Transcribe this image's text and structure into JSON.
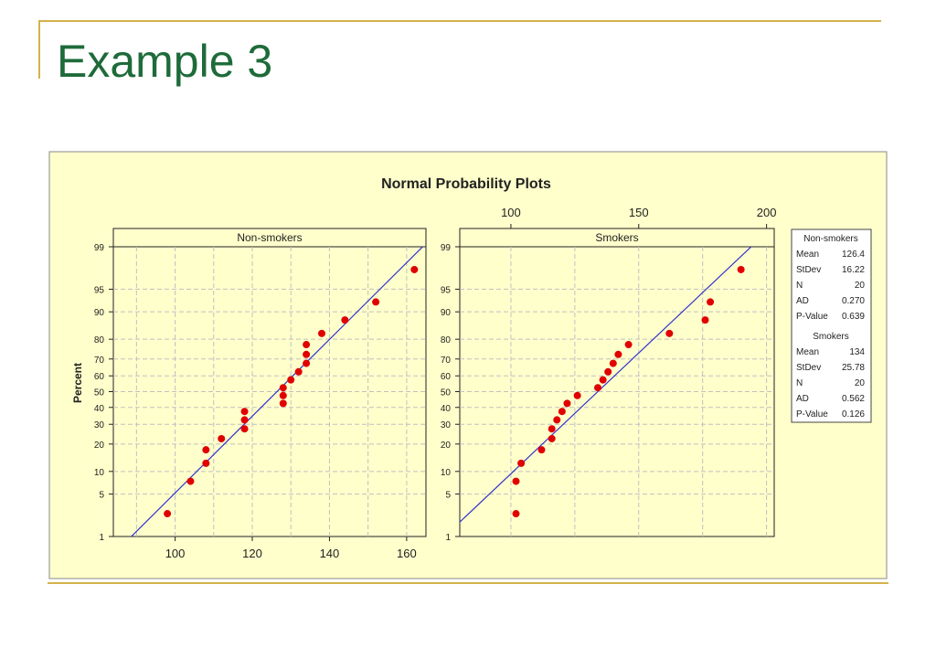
{
  "slide": {
    "title": "Example 3"
  },
  "colors": {
    "background": "#ffffcc",
    "point": "#e00000",
    "fit_line": "#3333cc",
    "grid": "#c0c0c0",
    "title": "#1e6b3a",
    "rule": "#d4b24a"
  },
  "chart_data": {
    "type": "scatter",
    "title": "Normal Probability Plots",
    "ylabel": "Percent",
    "y_scale": "normal-probability",
    "y_ticks": [
      1,
      5,
      10,
      20,
      30,
      40,
      50,
      60,
      70,
      80,
      90,
      95,
      99
    ],
    "grid": true,
    "legend_position": "right",
    "panels": [
      {
        "name": "Non-smokers",
        "x_axis_position": "bottom",
        "xlim": [
          84,
          165
        ],
        "x_ticks": [
          100,
          120,
          140,
          160
        ],
        "x": [
          98,
          104,
          108,
          108,
          112,
          118,
          118,
          118,
          128,
          128,
          128,
          130,
          132,
          134,
          134,
          134,
          138,
          144,
          152,
          162
        ],
        "y": [
          2.5,
          7.5,
          12.5,
          17.5,
          22.5,
          27.5,
          32.5,
          37.5,
          42.5,
          47.5,
          52.5,
          57.5,
          62.5,
          67.5,
          72.5,
          77.5,
          82.5,
          87.5,
          92.5,
          97.5
        ],
        "mean": 126.4,
        "stdev": 16.22
      },
      {
        "name": "Smokers",
        "x_axis_position": "top",
        "xlim": [
          80,
          203
        ],
        "x_ticks": [
          100,
          150,
          200
        ],
        "x": [
          102,
          102,
          104,
          112,
          116,
          116,
          118,
          120,
          122,
          126,
          134,
          136,
          138,
          140,
          142,
          146,
          162,
          176,
          178,
          190
        ],
        "y": [
          2.5,
          7.5,
          12.5,
          17.5,
          22.5,
          27.5,
          32.5,
          37.5,
          42.5,
          47.5,
          52.5,
          57.5,
          62.5,
          67.5,
          72.5,
          77.5,
          82.5,
          87.5,
          92.5,
          97.5
        ],
        "mean": 134,
        "stdev": 25.78
      }
    ],
    "stats": [
      {
        "name": "Non-smokers",
        "rows": [
          [
            "Mean",
            "126.4"
          ],
          [
            "StDev",
            "16.22"
          ],
          [
            "N",
            "20"
          ],
          [
            "AD",
            "0.270"
          ],
          [
            "P-Value",
            "0.639"
          ]
        ]
      },
      {
        "name": "Smokers",
        "rows": [
          [
            "Mean",
            "134"
          ],
          [
            "StDev",
            "25.78"
          ],
          [
            "N",
            "20"
          ],
          [
            "AD",
            "0.562"
          ],
          [
            "P-Value",
            "0.126"
          ]
        ]
      }
    ]
  }
}
